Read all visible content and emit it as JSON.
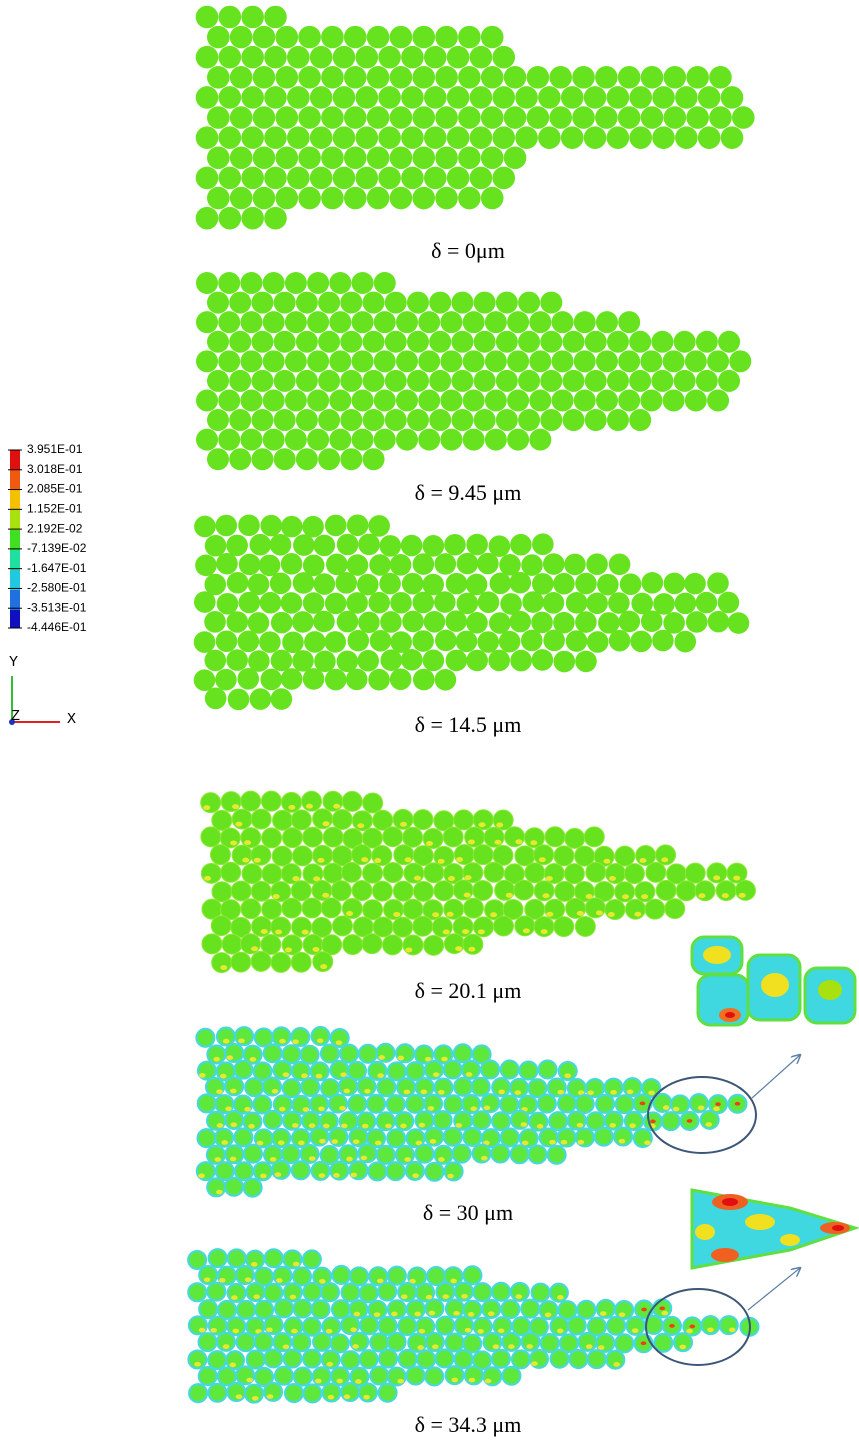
{
  "legend": {
    "labels": [
      "3.951E-01",
      "3.018E-01",
      "2.085E-01",
      "1.152E-01",
      "2.192E-02",
      "-7.139E-02",
      "-1.647E-01",
      "-2.580E-01",
      "-3.513E-01",
      "-4.446E-01"
    ]
  },
  "axes": {
    "y": "Y",
    "z": "Z",
    "x": "X"
  },
  "panels": [
    {
      "caption": "δ = 0μm"
    },
    {
      "caption": "δ = 9.45 μm"
    },
    {
      "caption": "δ = 14.5 μm"
    },
    {
      "caption": "δ = 20.1 μm"
    },
    {
      "caption": "δ = 30 μm"
    },
    {
      "caption": "δ = 34.3 μm"
    }
  ]
}
